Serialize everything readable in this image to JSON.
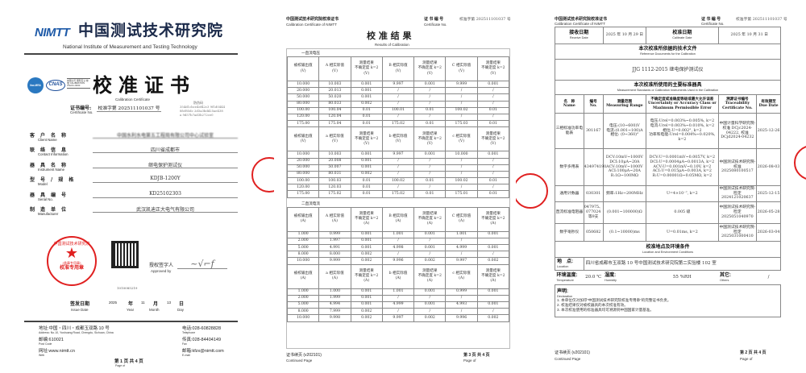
{
  "page1": {
    "logo_mark": "NIMTT",
    "institute_cn": "中国测试技术研究院",
    "institute_en": "National Institute of Measurement and Testing Technology",
    "accreditation_logos": [
      "ilac-MRA",
      "CNAS",
      "中国认可 国际互认 校准 CALIBRATION CNAS L0000"
    ],
    "title": "校准证书",
    "title_en": "Calibration Certificate",
    "cert_no_label": "证书编号:",
    "cert_no_label_en": "Certificate No.",
    "cert_no": "校准字第 202511101037 号",
    "anti_fake_label": "防伪码",
    "anti_fake_code": "354d1cbce4ef42c3 9f1d04448fcf85dc 2d3a3bdd25ae438a 9d57b7ad3b272ce0",
    "fields": [
      {
        "label": "客户名称",
        "label_en": "Client Name",
        "value": "中国水利水电第五工程局有限公司中心试验室"
      },
      {
        "label": "联络信息",
        "label_en": "Contact Information",
        "value": "四川省成都市"
      },
      {
        "label": "器具名称",
        "label_en": "Instrument Name",
        "value": "继电保护测试仪"
      },
      {
        "label": "型号/规格",
        "label_en": "Model",
        "value": "KDJB-1200Y"
      },
      {
        "label": "器具编号",
        "label_en": "Serial No.",
        "value": "KD25102303"
      },
      {
        "label": "制造单位",
        "label_en": "Manufacturer",
        "value": "武汉凯迪正大电气有限公司"
      }
    ],
    "stamp": {
      "text": "中国测试技术研究院",
      "bottom": "校准专用章",
      "label": "(盖章专用章)",
      "label_en": "Stamp"
    },
    "approved_label": "授权签字人",
    "approved_en": "Approved by",
    "qr_number": "1010085219",
    "issue": {
      "label": "签发日期",
      "label_en": "Issue Date",
      "year": "2025",
      "year_label": "年",
      "year_en": "Year",
      "month": "11",
      "month_label": "月",
      "month_en": "Month",
      "day": "13",
      "day_label": "日",
      "day_en": "Day"
    },
    "address": {
      "addr": "地址:中国・四川・成都玉双路 10 号",
      "addr_en": "Address: No.10, Yushuang Road, Chengdu, Sichuan, China",
      "post": "邮编:610021",
      "post_en": "Post Code",
      "web": "网址:www.nimtt.cn",
      "web_en": "Web",
      "tel": "电话:028-60828828",
      "tel_en": "Telephone",
      "fax": "传真:028-84404149",
      "fax_en": "Fax",
      "email": "邮箱:kfzx@nimtt.com",
      "email_en": "E-mail"
    },
    "page": "第 1 页 共 4 页",
    "page_en": "Page    of"
  },
  "page2": {
    "header_cn": "中国测试技术研究院校准证书",
    "header_en": "Calibration Certificate of NIMTT",
    "cert_no_label": "证 书 编 号",
    "cert_no": "校准字第 202511101037 号",
    "cert_no_en": "Certificate No.",
    "title": "校 准 结 果",
    "title_en": "Results of Calibration",
    "section1": "一直流电压",
    "section2": "二直流电流",
    "v_header1": [
      "被校输出值\n(V)",
      "A 相实际值\n(V)",
      "测量结果\n不确定度 k=2\n(V)",
      "B 相实际值\n(V)",
      "测量结果\n不确定度 k=2\n(V)",
      "C 相实际值\n(V)",
      "测量结果\n不确定度 k=2\n(V)"
    ],
    "v_rows1": [
      [
        "10.000",
        "10.003",
        "0.001",
        "9.997",
        "0.001",
        "9.999",
        "0.001"
      ],
      [
        "20.000",
        "20.013",
        "0.001",
        "/",
        "/",
        "/",
        "/"
      ],
      [
        "50.000",
        "50.020",
        "0.001",
        "/",
        "/",
        "/",
        "/"
      ],
      [
        "80.000",
        "80.033",
        "0.002",
        "/",
        "/",
        "/",
        "/"
      ],
      [
        "100.00",
        "100.04",
        "0.01",
        "100.01",
        "0.01",
        "100.02",
        "0.01"
      ],
      [
        "120.00",
        "120.04",
        "0.01",
        "/",
        "/",
        "/",
        "/"
      ],
      [
        "175.00",
        "175.04",
        "0.01",
        "175.02",
        "0.01",
        "175.03",
        "0.01"
      ]
    ],
    "v_header2": [
      "被校输出值\n(V)",
      "a 相实际值\n(V)",
      "测量结果\n不确定度 k=2\n(V)",
      "b 相实际值\n(V)",
      "测量结果\n不确定度 k=2\n(V)",
      "c 相实际值\n(V)",
      "测量结果\n不确定度 k=2\n(V)"
    ],
    "v_rows2": [
      [
        "10.000",
        "10.003",
        "0.001",
        "9.997",
        "0.001",
        "10.000",
        "0.001"
      ],
      [
        "20.000",
        "20.008",
        "0.001",
        "/",
        "/",
        "/",
        "/"
      ],
      [
        "50.000",
        "50.007",
        "0.001",
        "/",
        "/",
        "/",
        "/"
      ],
      [
        "80.000",
        "80.031",
        "0.002",
        "/",
        "/",
        "/",
        "/"
      ],
      [
        "100.00",
        "100.03",
        "0.01",
        "100.02",
        "0.01",
        "100.02",
        "0.01"
      ],
      [
        "120.00",
        "120.03",
        "0.01",
        "/",
        "/",
        "/",
        "/"
      ],
      [
        "175.00",
        "175.02",
        "0.01",
        "175.02",
        "0.01",
        "175.01",
        "0.01"
      ]
    ],
    "a_header1": [
      "被校输出值\n(A)",
      "A 相实际值\n(A)",
      "测量结果\n不确定度 k=2\n(A)",
      "B 相实际值\n(A)",
      "测量结果\n不确定度 k=2\n(A)",
      "C 相实际值\n(A)",
      "测量结果\n不确定度 k=2\n(A)"
    ],
    "a_rows1": [
      [
        "1.000",
        "0.999",
        "0.001",
        "1.001",
        "0.001",
        "1.001",
        "0.001"
      ],
      [
        "2.000",
        "1.997",
        "0.001",
        "/",
        "/",
        "/",
        ""
      ],
      [
        "5.000",
        "4.991",
        "0.001",
        "4.998",
        "0.001",
        "4.999",
        "0.001"
      ],
      [
        "8.000",
        "8.000",
        "0.002",
        "/",
        "/",
        "/",
        "/"
      ],
      [
        "10.000",
        "9.999",
        "0.002",
        "9.996",
        "0.002",
        "9.997",
        "0.002"
      ]
    ],
    "a_header2": [
      "被校输出值\n(A)",
      "a 相实际值\n(A)",
      "测量结果\n不确定度 k=2\n(A)",
      "b 相实际值\n(A)",
      "测量结果\n不确定度 k=2\n(A)",
      "c 相实际值\n(A)",
      "测量结果\n不确定度 k=2\n(A)"
    ],
    "a_rows2": [
      [
        "1.000",
        "1.000",
        "0.001",
        "1.001",
        "0.001",
        "0.999",
        "0.001"
      ],
      [
        "2.000",
        "1.999",
        "0.001",
        "/",
        "/",
        "/",
        ""
      ],
      [
        "5.000",
        "4.994",
        "0.001",
        "4.999",
        "0.001",
        "4.993",
        "0.001"
      ],
      [
        "8.000",
        "7.999",
        "0.002",
        "/",
        "/",
        "/",
        "/"
      ],
      [
        "10.000",
        "9.998",
        "0.002",
        "9.997",
        "0.002",
        "9.996",
        "0.002"
      ]
    ],
    "footer_cn": "证书续页 (v202101)",
    "footer_en": "Continued Page",
    "page": "第 3 页 共 4 页",
    "page_en": "Page    of"
  },
  "page3": {
    "header_cn": "中国测试技术研究院校准证书",
    "header_en": "Calibration Certificate of NIMTT",
    "cert_no_label": "证 书 编 号",
    "cert_no": "校准字第 202511101037 号",
    "cert_no_en": "Certificate No.",
    "receive_label": "接收日期",
    "receive_en": "Receive Date",
    "receive": "2025 年 10 月 29 日",
    "calibrate_label": "校准日期",
    "calibrate_en": "Calibrate Date",
    "calibrate": "2025 年 10 月 31 日",
    "ref_title": "本次校准所依据的技术文件",
    "ref_title_en": "Reference Documents for the Calibration",
    "ref_doc": "JJG 1112-2015 继电保护测试仪",
    "std_title": "本次校准所使用的主要标准器具",
    "std_title_en": "Measurement Standards or Calibration Instruments Used in the Calibration",
    "std_headers": [
      "名　称\nName",
      "编号\nNo.",
      "测量范围\nMeasuring Range",
      "不确定度或准确度等级或最大允许误差\nUncertainty or Accuracy Class or\nMaximum Permissible Error",
      "溯源证书编号\nTraceability\nCertificate No.",
      "有效期至\nDue Date"
    ],
    "std_rows": [
      [
        "三相标准功率电能表",
        "301167",
        "电压:(10~600)V\n电流:(0.001~100)A\n相位: (0~360)°",
        "电压:Urel=0.003%~0.005%, k=2\n电流:Urel=0.003%~0.010%, k=2\n相位:U=0.002°, k=2\n功率和电能:Urel=0.004%~0.020%, k=2",
        "中国计量科学研究院-校准 DCjc2024-04222, 校准 DCjd2024-04232",
        "2025-12-26"
      ],
      [
        "数字多用表",
        "434974190",
        "DCV:10mV~1000V\nDCI:10μA~20A\nACV:10mV~1000V\nACI:100μA~20A\nR:1Ω~100MΩ",
        "DCV:U=0.0001mV~0.0057V, k=2\nDCI:U=0.0004μA~0.0013A, k=2\nACV:U=0.001mV~0.10V, k=2\nACI:U=0.015μA~0.003A, k=2\nR:U=0.00001Ω~0.05MΩ, k=2",
        "中国测试技术研究院-校准 2025080100517",
        "2026-08-03"
      ],
      [
        "通用计数器",
        "030301",
        "频率:1Hz~200MHz",
        "U=4×10⁻⁷, k=2",
        "中国测试技术研究院-检定 2024121020637",
        "2025-12-15"
      ],
      [
        "直流标准电阻器",
        "047975、077024等9支",
        "(0.001~100000)Ω",
        "0.005 级",
        "中国测试技术研究院-检定 2025051040970",
        "2026-05-28"
      ],
      [
        "数字毫秒仪",
        "050682",
        "(0.1~10000)ms",
        "U=0.01ms, k=2",
        "中国测试技术研究院-检定 2025031000410",
        "2026-03-04"
      ]
    ],
    "loc_title": "校准地点及环境条件",
    "loc_title_en": "Location and Environment Conditions",
    "loc_label": "地　点:",
    "loc_label_en": "Location",
    "location": "四川省成都市玉双路 10 号中国测试技术研究院第二实验楼 102 室",
    "temp_label": "环境温度:",
    "temp_en": "Temperature",
    "temp": "20.0 ℃",
    "hum_label": "湿度:",
    "hum_en": "Humidity",
    "hum": "55 %RH",
    "other_label": "其它:",
    "other_en": "Others",
    "other": "/",
    "decl_label": "声明:",
    "decl_en": "Declaration",
    "decl": [
      "1. 本单位仅对加印“中国测试技术研究院校准专用章”的完整证书负责。",
      "2. 校准结果仅对被校器具的本次校准有效。",
      "3. 本次校准使用的标准器具均可溯源到中国国家计量基准。"
    ],
    "footer_cn": "证书续页 (v202101)",
    "footer_en": "Continued Page",
    "page": "第 2 页 共 4 页",
    "page_en": "Page    of"
  },
  "colors": {
    "stamp_red": "#e02020",
    "logo_blue": "#1e5aa8"
  }
}
